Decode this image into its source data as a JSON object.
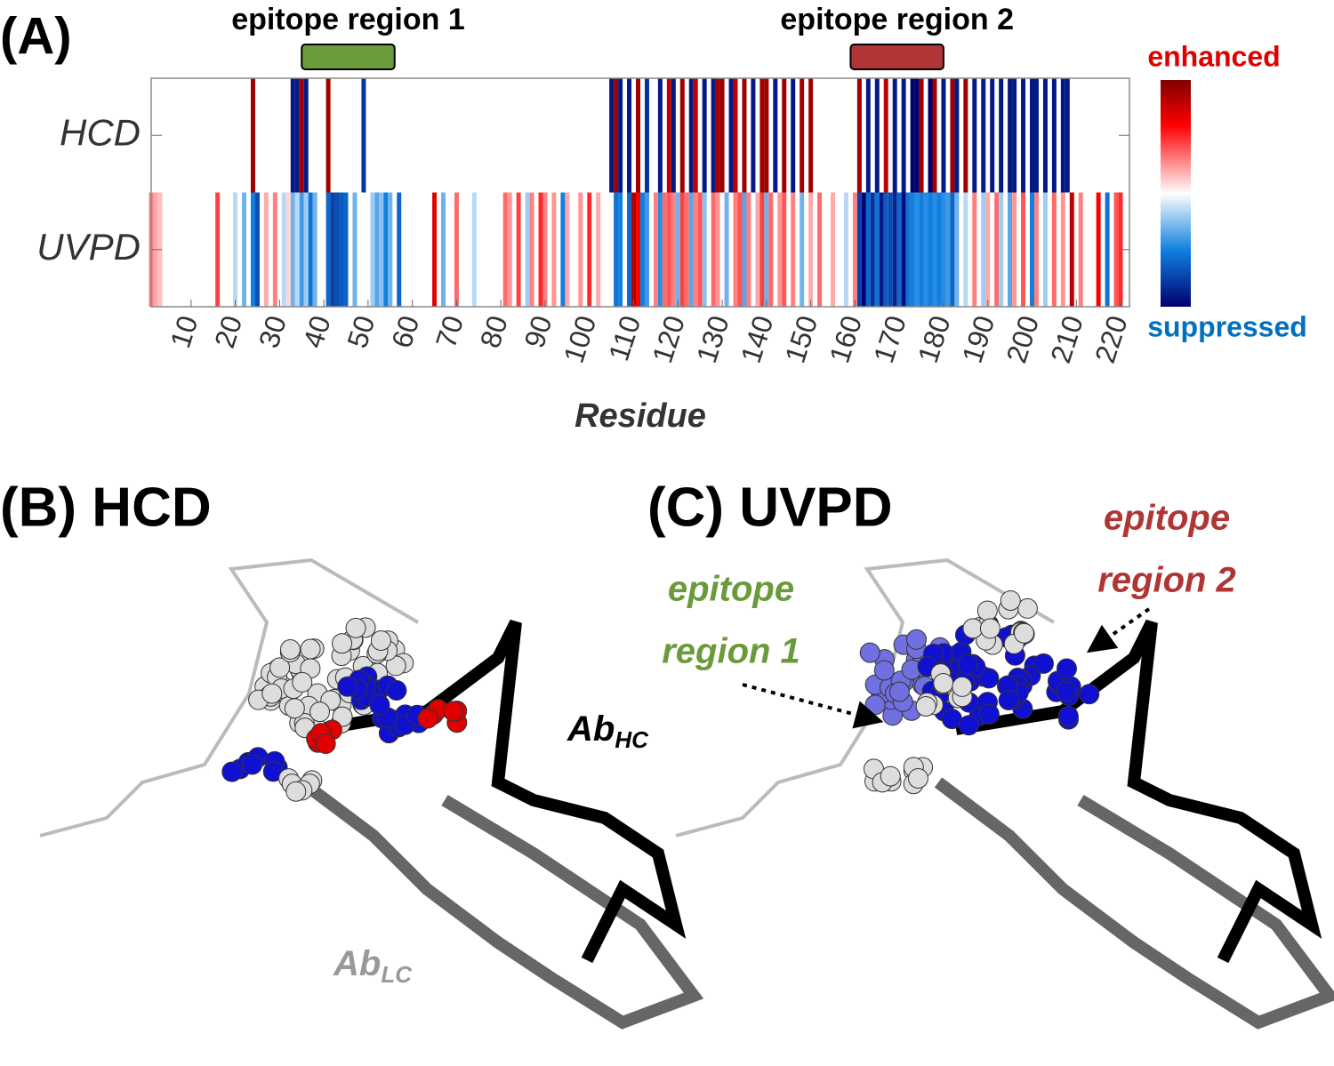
{
  "chart_data": {
    "type": "heatmap",
    "panel_label": "(A)",
    "x_label": "Residue",
    "xlim": [
      1,
      222
    ],
    "xticks": [
      10,
      20,
      30,
      40,
      50,
      60,
      70,
      80,
      90,
      100,
      110,
      120,
      130,
      140,
      150,
      160,
      170,
      180,
      190,
      200,
      210,
      220
    ],
    "colorbar_labels": {
      "high": "enhanced",
      "low": "suppressed"
    },
    "annotations": [
      {
        "label": "epitope region 1",
        "start": 35,
        "end": 56,
        "color": "#6a9a3a"
      },
      {
        "label": "epitope region 2",
        "start": 159,
        "end": 180,
        "color": "#b03535"
      }
    ],
    "series": [
      {
        "name": "HCD",
        "residues": [
          24,
          33,
          34,
          35,
          36,
          41,
          49,
          105,
          106,
          107,
          109,
          111,
          113,
          116,
          118,
          119,
          121,
          123,
          124,
          126,
          128,
          129,
          130,
          132,
          133,
          135,
          137,
          139,
          140,
          142,
          144,
          146,
          148,
          150,
          161,
          163,
          165,
          167,
          169,
          171,
          173,
          174,
          175,
          177,
          178,
          180,
          182,
          183,
          185,
          187,
          189,
          191,
          193,
          195,
          196,
          198,
          200,
          201,
          203,
          205,
          207,
          208
        ],
        "values": [
          0.9,
          -0.9,
          -0.9,
          0.9,
          -0.9,
          0.9,
          -0.8,
          -0.9,
          0.9,
          -0.9,
          -0.9,
          0.9,
          -0.8,
          -0.9,
          0.8,
          -0.9,
          0.9,
          -0.9,
          0.8,
          -0.9,
          -0.9,
          0.9,
          0.9,
          -0.9,
          0.8,
          0.9,
          -0.9,
          0.9,
          0.9,
          -0.9,
          0.9,
          -0.9,
          0.9,
          0.9,
          0.9,
          -0.9,
          -0.9,
          0.8,
          -0.9,
          -0.9,
          -1,
          -1,
          0.9,
          -1,
          0.9,
          -0.9,
          0.9,
          -0.9,
          0.9,
          -0.9,
          -0.9,
          -0.9,
          -0.9,
          -0.9,
          -0.9,
          -0.9,
          -0.9,
          -0.9,
          -0.9,
          -0.9,
          -0.9,
          -0.9
        ]
      },
      {
        "name": "UVPD",
        "residues": [
          1,
          2,
          3,
          16,
          20,
          22,
          24,
          25,
          27,
          29,
          31,
          32,
          33,
          34,
          35,
          36,
          37,
          38,
          41,
          42,
          43,
          44,
          45,
          47,
          51,
          52,
          53,
          54,
          55,
          57,
          65,
          67,
          70,
          74,
          81,
          82,
          84,
          86,
          87,
          89,
          90,
          92,
          94,
          95,
          98,
          100,
          102,
          106,
          107,
          109,
          110,
          111,
          112,
          113,
          115,
          116,
          117,
          118,
          119,
          120,
          121,
          122,
          123,
          124,
          125,
          126,
          128,
          129,
          131,
          133,
          134,
          135,
          136,
          138,
          139,
          140,
          141,
          143,
          144,
          146,
          148,
          150,
          152,
          155,
          158,
          160,
          161,
          162,
          163,
          164,
          165,
          166,
          167,
          168,
          169,
          170,
          171,
          172,
          173,
          174,
          175,
          176,
          177,
          178,
          179,
          180,
          181,
          182,
          183,
          185,
          187,
          189,
          190,
          192,
          193,
          195,
          196,
          198,
          200,
          201,
          203,
          205,
          207,
          209,
          211,
          215,
          217,
          219,
          220
        ],
        "values": [
          0.3,
          0.2,
          0.15,
          0.45,
          -0.15,
          -0.3,
          -0.5,
          -0.7,
          0.2,
          0.3,
          -0.15,
          0.1,
          -0.3,
          -0.15,
          -0.4,
          -0.2,
          -0.55,
          -0.3,
          -0.6,
          -0.75,
          -0.7,
          -0.65,
          -0.6,
          -0.3,
          -0.2,
          -0.35,
          -0.25,
          -0.5,
          -0.3,
          -0.6,
          0.7,
          -0.3,
          0.35,
          -0.15,
          0.35,
          0.25,
          0.45,
          -0.2,
          0.3,
          0.5,
          0.3,
          0.25,
          -0.5,
          0.2,
          0.25,
          0.5,
          0.2,
          -0.55,
          -0.5,
          -0.6,
          0.85,
          0.6,
          -0.5,
          -0.4,
          0.3,
          -0.45,
          0.35,
          0.4,
          0.3,
          -0.3,
          0.45,
          0.35,
          -0.35,
          0.3,
          0.4,
          -0.25,
          0.35,
          0.25,
          -0.3,
          0.3,
          0.4,
          -0.35,
          0.3,
          0.2,
          0.45,
          -0.3,
          0.35,
          0.25,
          0.4,
          0.3,
          -0.3,
          0.2,
          0.35,
          0.2,
          -0.15,
          0.3,
          -0.75,
          -1,
          -0.6,
          -0.8,
          -0.55,
          -0.9,
          -0.65,
          -0.7,
          -0.85,
          -0.6,
          -0.95,
          -0.55,
          -0.5,
          -0.45,
          -0.5,
          -0.45,
          -0.5,
          -0.45,
          -0.5,
          -0.45,
          -0.4,
          -0.6,
          -0.3,
          -0.15,
          0.3,
          -0.2,
          0.2,
          0.35,
          -0.2,
          -0.35,
          0.25,
          0.4,
          -0.5,
          0.3,
          -0.2,
          0.35,
          0.25,
          0.8,
          0.3,
          0.6,
          -0.55,
          0.4,
          0.5
        ]
      }
    ]
  },
  "panel_b": {
    "label": "(B) HCD",
    "heavy_chain": {
      "text": "Ab",
      "sub": "HC"
    },
    "light_chain": {
      "text": "Ab",
      "sub": "LC"
    }
  },
  "panel_c": {
    "label": "(C) UVPD",
    "epitope_1": [
      "epitope",
      "region 1"
    ],
    "epitope_2": [
      "epitope",
      "region 2"
    ]
  }
}
